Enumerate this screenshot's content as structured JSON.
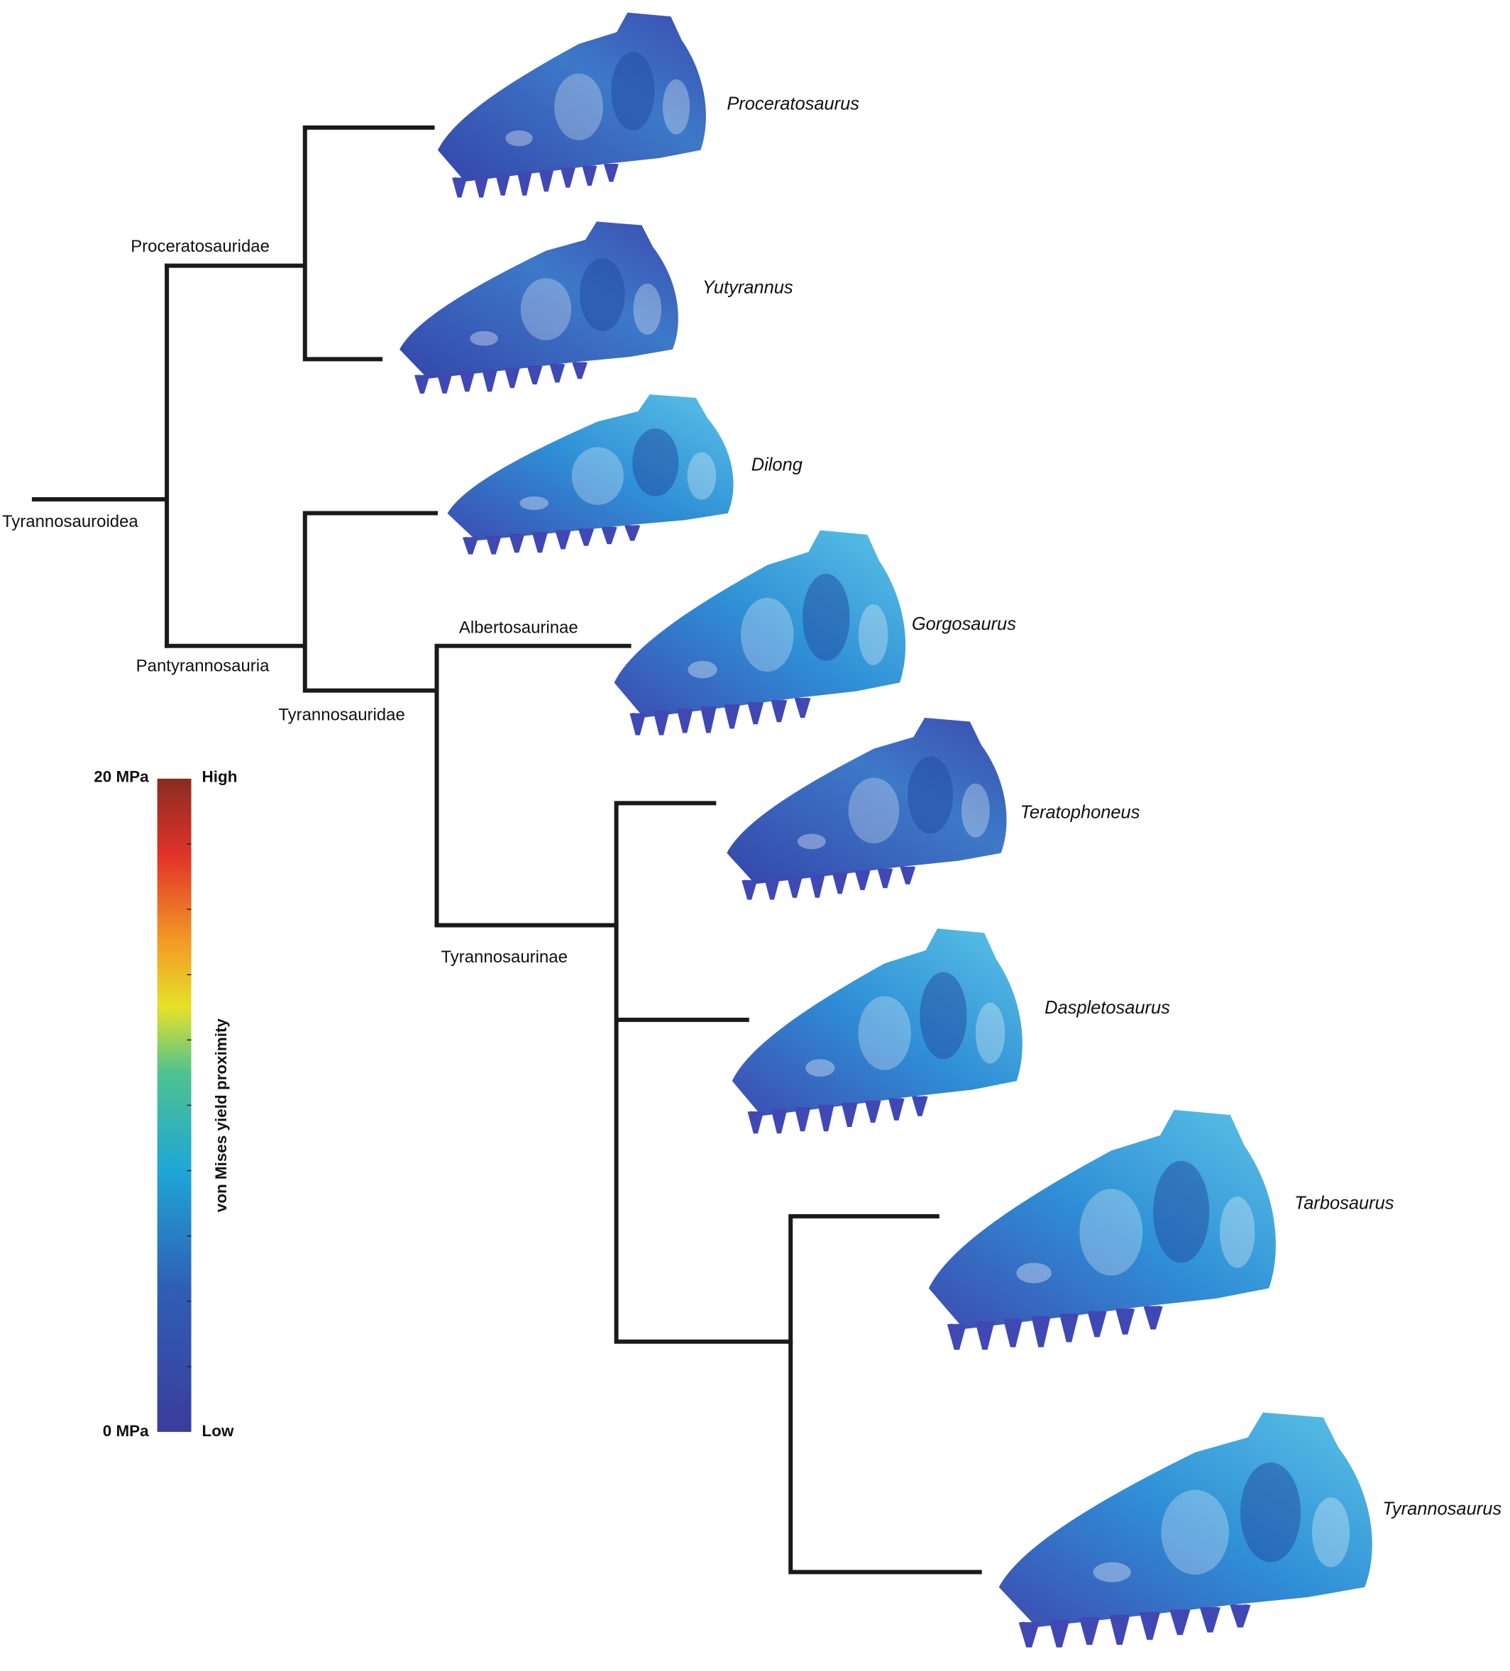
{
  "clades": [
    "Tyrannosauroidea",
    "Proceratosauridae",
    "Pantyrannosauria",
    "Tyrannosauridae",
    "Albertosaurinae",
    "Tyrannosaurinae"
  ],
  "taxa": [
    "Proceratosaurus",
    "Yutyrannus",
    "Dilong",
    "Gorgosaurus",
    "Teratophoneus",
    "Daspletosaurus",
    "Tarbosaurus",
    "Tyrannosaurus"
  ],
  "colorbar": {
    "title": "von Mises yield proximity",
    "max_label": "20 MPa",
    "min_label": "0 MPa",
    "high_label": "High",
    "low_label": "Low"
  }
}
